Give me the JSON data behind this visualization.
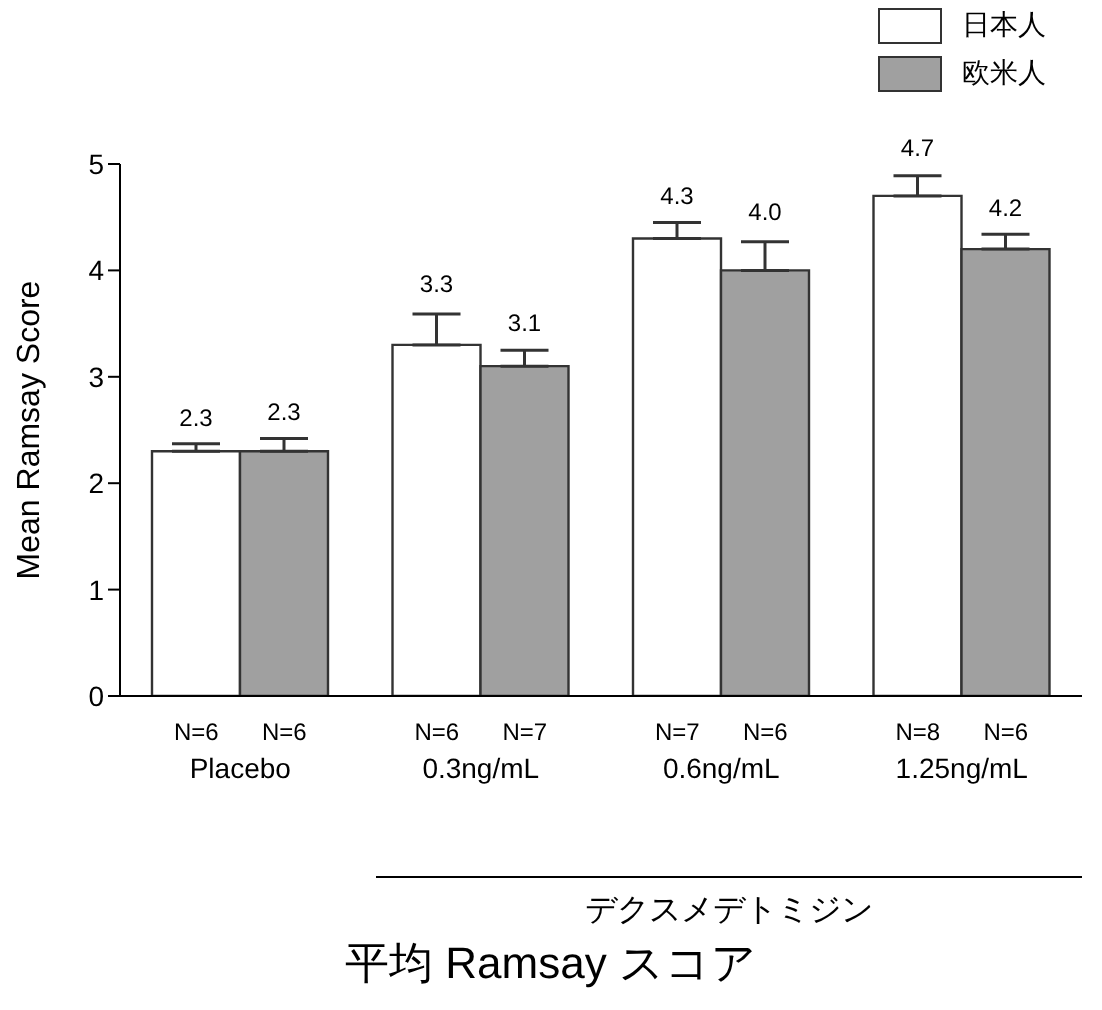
{
  "chart_data": {
    "type": "bar",
    "title": "平均 Ramsay スコア",
    "ylabel": "Mean Ramsay Score",
    "categories": [
      "Placebo",
      "0.3ng/mL",
      "0.6ng/mL",
      "1.25ng/mL"
    ],
    "series": [
      {
        "name": "日本人",
        "color": "#ffffff",
        "values": [
          2.3,
          3.3,
          4.3,
          4.7
        ],
        "value_labels": [
          "2.3",
          "3.3",
          "4.3",
          "4.7"
        ],
        "errors": [
          [
            2.3,
            2.37
          ],
          [
            3.3,
            3.59
          ],
          [
            4.3,
            4.45
          ],
          [
            4.7,
            4.89
          ]
        ]
      },
      {
        "name": "欧米人",
        "color": "#a0a0a0",
        "values": [
          2.3,
          3.1,
          4.0,
          4.2
        ],
        "value_labels": [
          "2.3",
          "3.1",
          "4.0",
          "4.2"
        ],
        "errors": [
          [
            2.3,
            2.42
          ],
          [
            3.1,
            3.25
          ],
          [
            4.0,
            4.27
          ],
          [
            4.2,
            4.34
          ]
        ]
      }
    ],
    "annotations": [
      "N=6",
      "N=6",
      "N=6",
      "N=7",
      "N=7",
      "N=6",
      "N=8",
      "N=6",
      "デクスメデトミジン"
    ],
    "ylim": [
      0,
      5
    ],
    "yticks": [
      0,
      1,
      2,
      3,
      4,
      5
    ],
    "legend": "top right",
    "grid": false
  }
}
